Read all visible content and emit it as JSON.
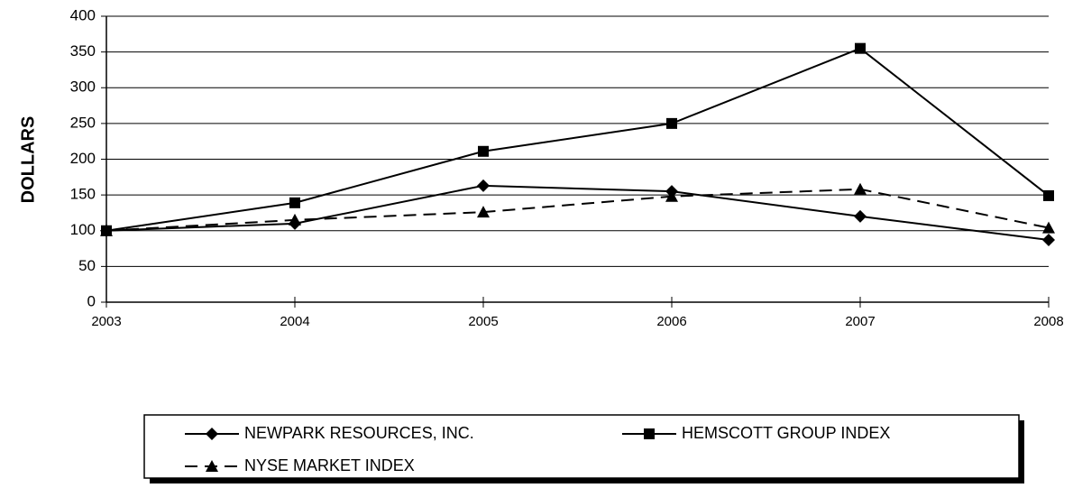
{
  "chart_data": {
    "type": "line",
    "y_label": "DOLLARS",
    "categories": [
      "2003",
      "2004",
      "2005",
      "2006",
      "2007",
      "2008"
    ],
    "series": [
      {
        "name": "NEWPARK RESOURCES, INC.",
        "color": "#000000",
        "marker": "diamond",
        "line_style": "solid",
        "values": [
          100,
          110,
          163,
          155,
          120,
          87
        ]
      },
      {
        "name": "HEMSCOTT GROUP INDEX",
        "color": "#000000",
        "marker": "square",
        "line_style": "solid",
        "values": [
          100,
          139,
          211,
          250,
          355,
          149
        ]
      },
      {
        "name": "NYSE MARKET INDEX",
        "color": "#000000",
        "marker": "triangle",
        "line_style": "dashed",
        "values": [
          100,
          115,
          126,
          148,
          158,
          104
        ]
      }
    ],
    "ylim": [
      0,
      400
    ],
    "yticks": [
      0,
      50,
      100,
      150,
      200,
      250,
      300,
      350,
      400
    ],
    "grid": true,
    "legend": "bottom"
  }
}
